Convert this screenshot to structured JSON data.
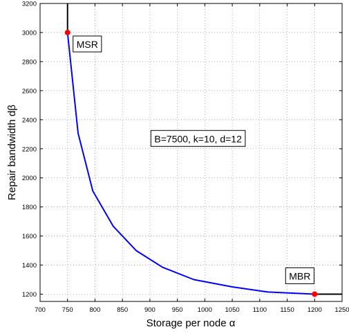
{
  "chart_data": {
    "type": "line",
    "xlabel": "Storage per node α",
    "ylabel": "Repair bandwidth dβ",
    "xlim": [
      700,
      1250
    ],
    "ylim": [
      1150,
      3200
    ],
    "grid": true,
    "xticks": [
      700,
      750,
      800,
      850,
      900,
      950,
      1000,
      1050,
      1100,
      1150,
      1200,
      1250
    ],
    "yticks": [
      1200,
      1400,
      1600,
      1800,
      2000,
      2200,
      2400,
      2600,
      2800,
      3000,
      3200
    ],
    "series": [
      {
        "color": "#0000ff",
        "points": [
          [
            750,
            3000
          ],
          [
            769.2,
            2307.7
          ],
          [
            796,
            1910
          ],
          [
            833.3,
            1666.7
          ],
          [
            875,
            1500
          ],
          [
            923,
            1385
          ],
          [
            980,
            1300
          ],
          [
            1050,
            1250
          ],
          [
            1115,
            1215
          ],
          [
            1200,
            1200
          ]
        ]
      }
    ],
    "extensions": {
      "color": "#000000",
      "vertical_at_x": 750,
      "vertical_from_y": 3000,
      "horizontal_at_y": 1200,
      "horizontal_from_x": 1200
    },
    "points": [
      {
        "label": "MSR",
        "x": 750,
        "y": 3000,
        "color": "#ff0000"
      },
      {
        "label": "MBR",
        "x": 1200,
        "y": 1200,
        "color": "#ff0000"
      }
    ],
    "annotations": [
      {
        "text": "MSR",
        "x": 750,
        "y": 3000
      },
      {
        "text": "B=7500, k=10,  d=12",
        "x": 1000,
        "y": 2250
      },
      {
        "text": "MBR",
        "x": 1200,
        "y": 1200
      }
    ]
  }
}
